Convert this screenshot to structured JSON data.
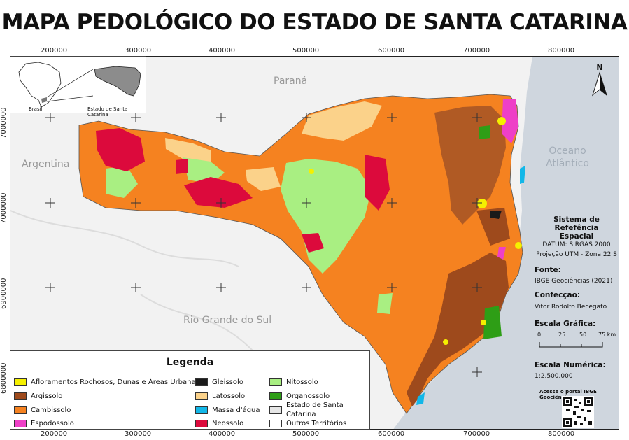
{
  "title": "MAPA PEDOLÓGICO DO ESTADO DE SANTA CATARINA",
  "grid": {
    "x_labels": [
      "200000",
      "300000",
      "400000",
      "500000",
      "600000",
      "700000",
      "800000"
    ],
    "y_labels": [
      "7000000",
      "6900000",
      "6800000"
    ]
  },
  "places": {
    "parana": "Paraná",
    "argentina": "Argentina",
    "rio_grande_do_sul": "Rio Grande do Sul",
    "ocean_line1": "Oceano",
    "ocean_line2": "Atlântico"
  },
  "inset": {
    "brasil": "Brasil",
    "state": "Estado de Santa Catarina"
  },
  "north_arrow": {
    "letter": "N",
    "icon": "north-arrow-icon"
  },
  "reference_system": {
    "title_line1": "Sistema de Refefência",
    "title_line2": "Espacial",
    "datum": "DATUM: SIRGAS 2000",
    "projection": "Projeção UTM - Zona 22 S"
  },
  "source": {
    "heading": "Fonte:",
    "text": "IBGE Geociências (2021)"
  },
  "author": {
    "heading": "Confecção:",
    "text": "Vitor Rodolfo Becegato"
  },
  "graphic_scale": {
    "heading": "Escala Gráfica:",
    "ticks": [
      "0",
      "25",
      "50",
      "75 km"
    ]
  },
  "numeric_scale": {
    "heading": "Escala Numérica:",
    "value": "1:2.500.000"
  },
  "portal_text": "Acesse o portal IBGE Geociências:",
  "legend": {
    "title": "Legenda",
    "items": [
      {
        "label": "Afloramentos Rochosos, Dunas e Áreas Urbanas",
        "color": "#f5f000"
      },
      {
        "label": "Argissolo",
        "color": "#9e4a1c"
      },
      {
        "label": "Cambissolo",
        "color": "#f58220"
      },
      {
        "label": "Espodossolo",
        "color": "#ee3fc7"
      },
      {
        "label": "Gleissolo",
        "color": "#1a1a1a"
      },
      {
        "label": "Latossolo",
        "color": "#fbd28a"
      },
      {
        "label": "Massa d'água",
        "color": "#12b7e8"
      },
      {
        "label": "Neossolo",
        "color": "#dc0a3c"
      },
      {
        "label": "Nitossolo",
        "color": "#a9ef82"
      },
      {
        "label": "Organossolo",
        "color": "#2e9e16"
      },
      {
        "label": "Estado de Santa Catarina",
        "color": "#e6e6e6"
      },
      {
        "label": "Outros Territórios",
        "color": "#ffffff"
      }
    ]
  },
  "colors": {
    "background": "#f2f2f2",
    "ocean": "#cfd6de",
    "cambissolo": "#f58220",
    "argissolo": "#9e4a1c",
    "nitossolo": "#a9ef82",
    "latossolo": "#fbd28a",
    "neossolo": "#dc0a3c",
    "espodossolo": "#ee3fc7",
    "organossolo": "#2e9e16",
    "afloramentos": "#f5f000",
    "gleissolo": "#1a1a1a",
    "agua": "#12b7e8"
  }
}
